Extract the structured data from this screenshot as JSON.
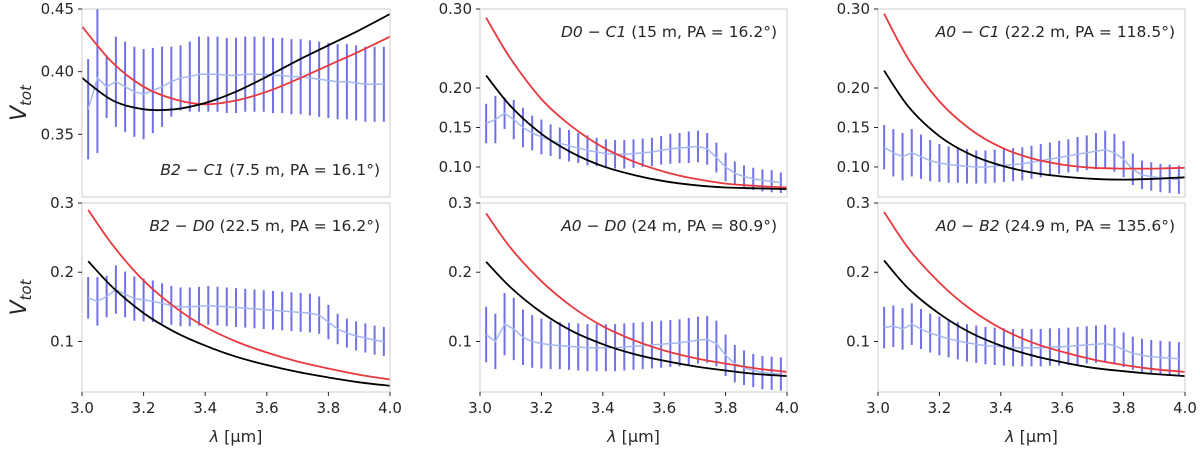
{
  "colors": {
    "model_red": "#e8393e",
    "model_black": "#000000",
    "errorbar": "#7070e8",
    "data_line": "#a6b8f0"
  },
  "chart_data": [
    {
      "type": "line",
      "label_prefix": "B2 − C1",
      "label_suffix": " (7.5 m, PA = 16.1°)",
      "label_position": "bottom-right",
      "ylabel": "V_tot",
      "xlabel": "",
      "xlim": [
        3.0,
        4.0
      ],
      "ylim": [
        0.3,
        0.45
      ],
      "yticks": [
        0.35,
        0.4,
        0.45
      ],
      "ytick_labels": [
        "0.35",
        "0.40",
        "0.45"
      ],
      "xticks": [],
      "models": {
        "red": {
          "x": [
            3.0,
            3.1,
            3.2,
            3.3,
            3.4,
            3.5,
            3.6,
            3.7,
            3.8,
            3.9,
            4.0
          ],
          "y": [
            0.436,
            0.407,
            0.388,
            0.378,
            0.374,
            0.377,
            0.384,
            0.394,
            0.405,
            0.416,
            0.428
          ]
        },
        "black": {
          "x": [
            3.0,
            3.1,
            3.2,
            3.3,
            3.4,
            3.5,
            3.6,
            3.7,
            3.8,
            3.9,
            4.0
          ],
          "y": [
            0.395,
            0.377,
            0.37,
            0.37,
            0.375,
            0.384,
            0.396,
            0.409,
            0.421,
            0.433,
            0.446
          ]
        }
      },
      "data": {
        "x": [
          3.02,
          3.05,
          3.08,
          3.11,
          3.14,
          3.17,
          3.2,
          3.23,
          3.26,
          3.29,
          3.32,
          3.35,
          3.38,
          3.41,
          3.44,
          3.47,
          3.5,
          3.53,
          3.56,
          3.59,
          3.62,
          3.65,
          3.68,
          3.71,
          3.74,
          3.77,
          3.8,
          3.83,
          3.86,
          3.89,
          3.92,
          3.95,
          3.98
        ],
        "y": [
          0.37,
          0.395,
          0.388,
          0.392,
          0.388,
          0.384,
          0.382,
          0.385,
          0.388,
          0.392,
          0.395,
          0.396,
          0.398,
          0.398,
          0.398,
          0.397,
          0.397,
          0.398,
          0.398,
          0.398,
          0.397,
          0.397,
          0.396,
          0.396,
          0.395,
          0.394,
          0.393,
          0.392,
          0.392,
          0.391,
          0.39,
          0.39,
          0.39
        ],
        "err": [
          0.04,
          0.06,
          0.025,
          0.036,
          0.036,
          0.036,
          0.036,
          0.034,
          0.032,
          0.028,
          0.026,
          0.028,
          0.03,
          0.03,
          0.03,
          0.03,
          0.03,
          0.03,
          0.03,
          0.03,
          0.03,
          0.03,
          0.03,
          0.03,
          0.03,
          0.03,
          0.03,
          0.03,
          0.03,
          0.03,
          0.03,
          0.03,
          0.03
        ]
      }
    },
    {
      "type": "line",
      "label_prefix": "D0 − C1",
      "label_suffix": " (15 m, PA = 16.2°)",
      "label_position": "top-right",
      "ylabel": "",
      "xlabel": "",
      "xlim": [
        3.0,
        4.0
      ],
      "ylim": [
        0.062,
        0.3
      ],
      "yticks": [
        0.1,
        0.15,
        0.2,
        0.3
      ],
      "ytick_labels": [
        "0.10",
        "0.15",
        "0.20",
        "0.30"
      ],
      "xticks": [],
      "models": {
        "red": {
          "x": [
            3.02,
            3.1,
            3.2,
            3.3,
            3.4,
            3.5,
            3.6,
            3.7,
            3.8,
            3.9,
            4.0
          ],
          "y": [
            0.289,
            0.237,
            0.186,
            0.151,
            0.125,
            0.107,
            0.094,
            0.085,
            0.079,
            0.076,
            0.074
          ]
        },
        "black": {
          "x": [
            3.02,
            3.1,
            3.2,
            3.3,
            3.4,
            3.5,
            3.6,
            3.7,
            3.8,
            3.9,
            4.0
          ],
          "y": [
            0.216,
            0.177,
            0.142,
            0.118,
            0.101,
            0.09,
            0.082,
            0.077,
            0.074,
            0.073,
            0.072
          ]
        }
      },
      "data": {
        "x": [
          3.02,
          3.05,
          3.08,
          3.11,
          3.14,
          3.17,
          3.2,
          3.23,
          3.26,
          3.29,
          3.32,
          3.35,
          3.38,
          3.41,
          3.44,
          3.47,
          3.5,
          3.53,
          3.56,
          3.59,
          3.62,
          3.65,
          3.68,
          3.71,
          3.74,
          3.77,
          3.8,
          3.83,
          3.86,
          3.89,
          3.92,
          3.95,
          3.98
        ],
        "y": [
          0.155,
          0.16,
          0.168,
          0.16,
          0.15,
          0.143,
          0.138,
          0.134,
          0.13,
          0.127,
          0.124,
          0.121,
          0.119,
          0.117,
          0.116,
          0.116,
          0.117,
          0.118,
          0.119,
          0.121,
          0.123,
          0.124,
          0.125,
          0.126,
          0.123,
          0.112,
          0.1,
          0.092,
          0.088,
          0.085,
          0.083,
          0.082,
          0.08
        ],
        "err": [
          0.025,
          0.03,
          0.02,
          0.025,
          0.025,
          0.022,
          0.022,
          0.02,
          0.02,
          0.02,
          0.019,
          0.019,
          0.018,
          0.018,
          0.018,
          0.018,
          0.018,
          0.018,
          0.018,
          0.018,
          0.019,
          0.019,
          0.02,
          0.02,
          0.02,
          0.019,
          0.018,
          0.015,
          0.014,
          0.014,
          0.014,
          0.014,
          0.013
        ]
      }
    },
    {
      "type": "line",
      "label_prefix": "A0 − C1",
      "label_suffix": " (22.2 m, PA = 118.5°)",
      "label_position": "top-right",
      "ylabel": "",
      "xlabel": "",
      "xlim": [
        3.0,
        4.0
      ],
      "ylim": [
        0.062,
        0.3
      ],
      "yticks": [
        0.1,
        0.15,
        0.2,
        0.3
      ],
      "ytick_labels": [
        "0.10",
        "0.15",
        "0.20",
        "0.30"
      ],
      "xticks": [],
      "models": {
        "red": {
          "x": [
            3.02,
            3.1,
            3.2,
            3.3,
            3.4,
            3.5,
            3.6,
            3.7,
            3.8,
            3.9,
            4.0
          ],
          "y": [
            0.294,
            0.236,
            0.183,
            0.148,
            0.125,
            0.111,
            0.103,
            0.099,
            0.098,
            0.098,
            0.099
          ]
        },
        "black": {
          "x": [
            3.02,
            3.1,
            3.2,
            3.3,
            3.4,
            3.5,
            3.6,
            3.7,
            3.8,
            3.9,
            4.0
          ],
          "y": [
            0.222,
            0.176,
            0.139,
            0.116,
            0.102,
            0.093,
            0.088,
            0.085,
            0.084,
            0.085,
            0.087
          ]
        }
      },
      "data": {
        "x": [
          3.02,
          3.05,
          3.08,
          3.11,
          3.14,
          3.17,
          3.2,
          3.23,
          3.26,
          3.29,
          3.32,
          3.35,
          3.38,
          3.41,
          3.44,
          3.47,
          3.5,
          3.53,
          3.56,
          3.59,
          3.62,
          3.65,
          3.68,
          3.71,
          3.74,
          3.77,
          3.8,
          3.83,
          3.86,
          3.89,
          3.92,
          3.95,
          3.98
        ],
        "y": [
          0.125,
          0.118,
          0.113,
          0.118,
          0.113,
          0.108,
          0.105,
          0.103,
          0.102,
          0.101,
          0.1,
          0.1,
          0.101,
          0.102,
          0.103,
          0.104,
          0.106,
          0.108,
          0.11,
          0.112,
          0.114,
          0.116,
          0.118,
          0.12,
          0.122,
          0.118,
          0.11,
          0.097,
          0.09,
          0.088,
          0.086,
          0.085,
          0.084
        ],
        "err": [
          0.028,
          0.03,
          0.03,
          0.03,
          0.028,
          0.026,
          0.024,
          0.023,
          0.022,
          0.022,
          0.021,
          0.021,
          0.021,
          0.021,
          0.021,
          0.021,
          0.021,
          0.021,
          0.021,
          0.021,
          0.021,
          0.022,
          0.022,
          0.023,
          0.024,
          0.024,
          0.023,
          0.02,
          0.018,
          0.018,
          0.018,
          0.018,
          0.018
        ]
      }
    },
    {
      "type": "line",
      "label_prefix": "B2 − D0",
      "label_suffix": " (22.5 m, PA = 16.2°)",
      "label_position": "top-right",
      "ylabel": "V_tot",
      "xlabel": "λ [μm]",
      "xlim": [
        3.0,
        4.0
      ],
      "ylim": [
        0.027,
        0.3
      ],
      "yticks": [
        0.1,
        0.2,
        0.3
      ],
      "ytick_labels": [
        "0.1",
        "0.2",
        "0.3"
      ],
      "xticks": [
        3.0,
        3.2,
        3.4,
        3.6,
        3.8,
        4.0
      ],
      "xtick_labels": [
        "3.0",
        "3.2",
        "3.4",
        "3.6",
        "3.8",
        "4.0"
      ],
      "models": {
        "red": {
          "x": [
            3.02,
            3.1,
            3.2,
            3.3,
            3.4,
            3.5,
            3.6,
            3.7,
            3.8,
            3.9,
            4.0
          ],
          "y": [
            0.29,
            0.239,
            0.188,
            0.15,
            0.121,
            0.1,
            0.084,
            0.071,
            0.061,
            0.052,
            0.045
          ]
        },
        "black": {
          "x": [
            3.02,
            3.1,
            3.2,
            3.3,
            3.4,
            3.5,
            3.6,
            3.7,
            3.8,
            3.9,
            4.0
          ],
          "y": [
            0.216,
            0.178,
            0.141,
            0.114,
            0.094,
            0.078,
            0.066,
            0.056,
            0.048,
            0.041,
            0.036
          ]
        }
      },
      "data": {
        "x": [
          3.02,
          3.05,
          3.08,
          3.11,
          3.14,
          3.17,
          3.2,
          3.23,
          3.26,
          3.29,
          3.32,
          3.35,
          3.38,
          3.41,
          3.44,
          3.47,
          3.5,
          3.53,
          3.56,
          3.59,
          3.62,
          3.65,
          3.68,
          3.71,
          3.74,
          3.77,
          3.8,
          3.83,
          3.86,
          3.89,
          3.92,
          3.95,
          3.98
        ],
        "y": [
          0.163,
          0.158,
          0.165,
          0.175,
          0.168,
          0.162,
          0.16,
          0.158,
          0.155,
          0.152,
          0.15,
          0.15,
          0.151,
          0.152,
          0.151,
          0.15,
          0.149,
          0.148,
          0.147,
          0.146,
          0.145,
          0.144,
          0.143,
          0.142,
          0.141,
          0.138,
          0.128,
          0.118,
          0.112,
          0.108,
          0.105,
          0.102,
          0.1
        ],
        "err": [
          0.03,
          0.035,
          0.03,
          0.035,
          0.033,
          0.032,
          0.031,
          0.03,
          0.029,
          0.028,
          0.028,
          0.028,
          0.028,
          0.028,
          0.028,
          0.028,
          0.028,
          0.028,
          0.028,
          0.028,
          0.028,
          0.028,
          0.028,
          0.028,
          0.028,
          0.027,
          0.025,
          0.022,
          0.021,
          0.021,
          0.021,
          0.021,
          0.021
        ]
      }
    },
    {
      "type": "line",
      "label_prefix": "A0 − D0",
      "label_suffix": " (24 m, PA = 80.9°)",
      "label_position": "top-right",
      "ylabel": "",
      "xlabel": "λ [μm]",
      "xlim": [
        3.0,
        4.0
      ],
      "ylim": [
        0.027,
        0.3
      ],
      "yticks": [
        0.1,
        0.2,
        0.3
      ],
      "ytick_labels": [
        "0.1",
        "0.2",
        "0.3"
      ],
      "xticks": [
        3.0,
        3.2,
        3.4,
        3.6,
        3.8,
        4.0
      ],
      "xtick_labels": [
        "3.0",
        "3.2",
        "3.4",
        "3.6",
        "3.8",
        "4.0"
      ],
      "models": {
        "red": {
          "x": [
            3.02,
            3.1,
            3.2,
            3.3,
            3.4,
            3.5,
            3.6,
            3.7,
            3.8,
            3.9,
            4.0
          ],
          "y": [
            0.285,
            0.235,
            0.187,
            0.15,
            0.122,
            0.102,
            0.087,
            0.076,
            0.068,
            0.061,
            0.056
          ]
        },
        "black": {
          "x": [
            3.02,
            3.1,
            3.2,
            3.3,
            3.4,
            3.5,
            3.6,
            3.7,
            3.8,
            3.9,
            4.0
          ],
          "y": [
            0.215,
            0.178,
            0.142,
            0.115,
            0.096,
            0.082,
            0.072,
            0.064,
            0.058,
            0.053,
            0.05
          ]
        }
      },
      "data": {
        "x": [
          3.02,
          3.05,
          3.08,
          3.11,
          3.14,
          3.17,
          3.2,
          3.23,
          3.26,
          3.29,
          3.32,
          3.35,
          3.38,
          3.41,
          3.44,
          3.47,
          3.5,
          3.53,
          3.56,
          3.59,
          3.62,
          3.65,
          3.68,
          3.71,
          3.74,
          3.77,
          3.8,
          3.83,
          3.86,
          3.89,
          3.92,
          3.95,
          3.98
        ],
        "y": [
          0.11,
          0.1,
          0.125,
          0.118,
          0.106,
          0.1,
          0.097,
          0.095,
          0.094,
          0.093,
          0.092,
          0.091,
          0.091,
          0.091,
          0.091,
          0.092,
          0.093,
          0.094,
          0.095,
          0.096,
          0.097,
          0.098,
          0.1,
          0.102,
          0.103,
          0.097,
          0.08,
          0.068,
          0.062,
          0.058,
          0.055,
          0.054,
          0.053
        ],
        "err": [
          0.04,
          0.04,
          0.045,
          0.045,
          0.04,
          0.038,
          0.036,
          0.035,
          0.034,
          0.034,
          0.034,
          0.034,
          0.034,
          0.034,
          0.034,
          0.034,
          0.034,
          0.034,
          0.034,
          0.034,
          0.034,
          0.034,
          0.034,
          0.034,
          0.034,
          0.033,
          0.03,
          0.027,
          0.025,
          0.024,
          0.024,
          0.024,
          0.024
        ]
      }
    },
    {
      "type": "line",
      "label_prefix": "A0 − B2",
      "label_suffix": " (24.9 m, PA = 135.6°)",
      "label_position": "top-right",
      "ylabel": "",
      "xlabel": "λ [μm]",
      "xlim": [
        3.0,
        4.0
      ],
      "ylim": [
        0.027,
        0.3
      ],
      "yticks": [
        0.1,
        0.2,
        0.3
      ],
      "ytick_labels": [
        "0.1",
        "0.2",
        "0.3"
      ],
      "xticks": [
        3.0,
        3.2,
        3.4,
        3.6,
        3.8,
        4.0
      ],
      "xtick_labels": [
        "3.0",
        "3.2",
        "3.4",
        "3.6",
        "3.8",
        "4.0"
      ],
      "models": {
        "red": {
          "x": [
            3.02,
            3.1,
            3.2,
            3.3,
            3.4,
            3.5,
            3.6,
            3.7,
            3.8,
            3.9,
            4.0
          ],
          "y": [
            0.287,
            0.234,
            0.185,
            0.147,
            0.119,
            0.099,
            0.085,
            0.074,
            0.066,
            0.06,
            0.056
          ]
        },
        "black": {
          "x": [
            3.02,
            3.1,
            3.2,
            3.3,
            3.4,
            3.5,
            3.6,
            3.7,
            3.8,
            3.9,
            4.0
          ],
          "y": [
            0.217,
            0.176,
            0.14,
            0.113,
            0.094,
            0.08,
            0.07,
            0.062,
            0.057,
            0.053,
            0.05
          ]
        }
      },
      "data": {
        "x": [
          3.02,
          3.05,
          3.08,
          3.11,
          3.14,
          3.17,
          3.2,
          3.23,
          3.26,
          3.29,
          3.32,
          3.35,
          3.38,
          3.41,
          3.44,
          3.47,
          3.5,
          3.53,
          3.56,
          3.59,
          3.62,
          3.65,
          3.68,
          3.71,
          3.74,
          3.77,
          3.8,
          3.83,
          3.86,
          3.89,
          3.92,
          3.95,
          3.98
        ],
        "y": [
          0.12,
          0.122,
          0.118,
          0.125,
          0.118,
          0.112,
          0.108,
          0.104,
          0.101,
          0.098,
          0.096,
          0.094,
          0.093,
          0.092,
          0.091,
          0.091,
          0.091,
          0.091,
          0.092,
          0.092,
          0.093,
          0.094,
          0.095,
          0.096,
          0.097,
          0.094,
          0.088,
          0.083,
          0.08,
          0.078,
          0.077,
          0.076,
          0.075
        ],
        "err": [
          0.03,
          0.03,
          0.03,
          0.03,
          0.029,
          0.028,
          0.028,
          0.027,
          0.027,
          0.027,
          0.027,
          0.027,
          0.027,
          0.027,
          0.027,
          0.027,
          0.027,
          0.027,
          0.027,
          0.027,
          0.027,
          0.027,
          0.027,
          0.027,
          0.027,
          0.026,
          0.025,
          0.024,
          0.024,
          0.024,
          0.024,
          0.024,
          0.024
        ]
      }
    }
  ]
}
